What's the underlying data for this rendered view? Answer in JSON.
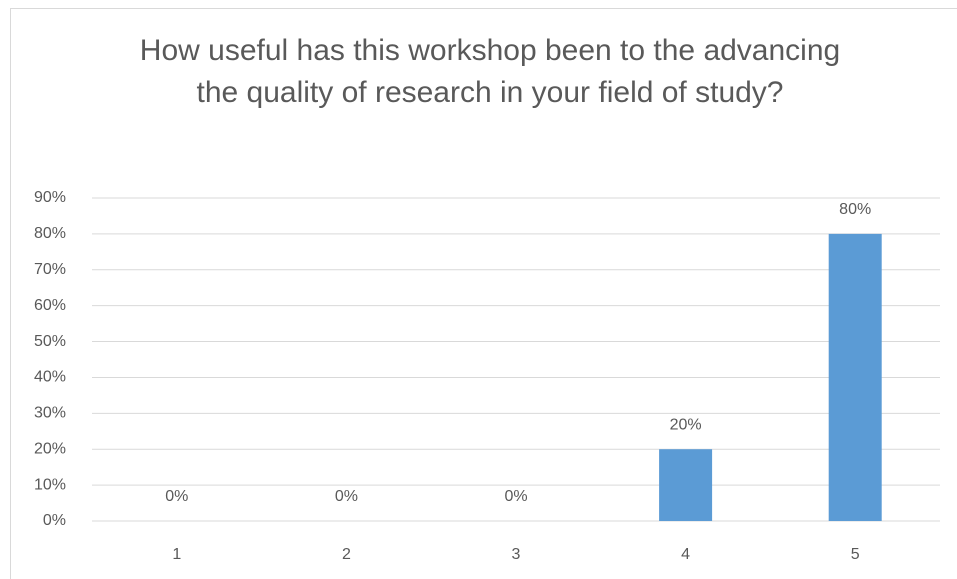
{
  "chart_data": {
    "type": "bar",
    "title": "How useful has this workshop been to the advancing the quality of research in your field of study?",
    "categories": [
      "1",
      "2",
      "3",
      "4",
      "5"
    ],
    "values": [
      0,
      0,
      0,
      20,
      80
    ],
    "value_labels": [
      "0%",
      "0%",
      "0%",
      "20%",
      "80%"
    ],
    "color": "#5b9bd5",
    "ylim": [
      0,
      90
    ],
    "yticks": [
      {
        "value": 0,
        "label": "0%"
      },
      {
        "value": 10,
        "label": "10%"
      },
      {
        "value": 20,
        "label": "20%"
      },
      {
        "value": 30,
        "label": "30%"
      },
      {
        "value": 40,
        "label": "40%"
      },
      {
        "value": 50,
        "label": "50%"
      },
      {
        "value": 60,
        "label": "60%"
      },
      {
        "value": 70,
        "label": "70%"
      },
      {
        "value": 80,
        "label": "80%"
      },
      {
        "value": 90,
        "label": "90%"
      }
    ],
    "grid": true
  }
}
